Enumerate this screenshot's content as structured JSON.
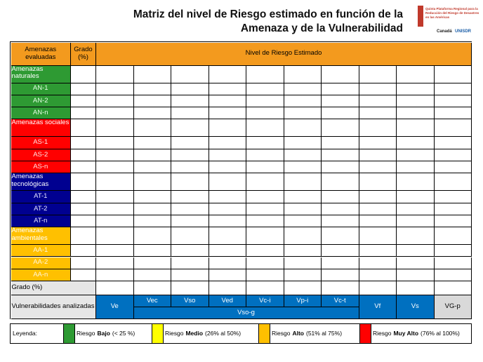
{
  "header": {
    "title_line1": "Matriz del nivel de Riesgo estimado en función de la",
    "title_line2": "Amenaza y de la Vulnerabilidad",
    "logo": {
      "line1": "Quinta Plataforma Regional para la",
      "line2": "Reducción del Riesgo de Desastres",
      "line3": "en las Américas",
      "canada": "Canadá",
      "unisdr": "UNISDR"
    }
  },
  "table": {
    "col_threat": "Amenazas evaluadas",
    "col_grade": "Grado (%)",
    "col_risk": "Nivel de Riesgo Estimado",
    "header_color": "#f39a1e",
    "groups": [
      {
        "name": "Amenazas naturales",
        "color": "#2e9a33",
        "item_text_color": "#e6ffe6",
        "items": [
          "AN-1",
          "AN-2",
          "AN-n"
        ]
      },
      {
        "name": "Amenazas sociales",
        "color": "#ff0000",
        "item_text_color": "#ffe6e6",
        "items": [
          "AS-1",
          "AS-2",
          "AS-n"
        ]
      },
      {
        "name": "Amenazas tecnológicas",
        "color": "#000090",
        "item_text_color": "#e6e6ff",
        "items": [
          "AT-1",
          "AT-2",
          "AT-n"
        ]
      },
      {
        "name": "Amenazas ambientales",
        "color": "#ffc000",
        "item_text_color": "#fff6dd",
        "items": [
          "AA-1",
          "AA-2",
          "AA-n"
        ]
      }
    ],
    "grade_row": "Grado (%)",
    "vulnerability_row": {
      "label": "Vulnerabilidades analizadas",
      "ve": "Ve",
      "sub": [
        "Vec",
        "Vso",
        "Ved",
        "Vc-i",
        "Vp-i",
        "Vc-t"
      ],
      "group": "Vso-g",
      "vf": "Vf",
      "vs": "Vs",
      "total": "VG-p",
      "blue": "#0070c0",
      "gray": "#d9d9d9"
    }
  },
  "legend": {
    "label": "Leyenda:",
    "items": [
      {
        "color": "#2e9a33",
        "prefix": "Riesgo",
        "level": "Bajo",
        "range": "(< 25 %)"
      },
      {
        "color": "#ffff00",
        "prefix": "Riesgo",
        "level": "Medio",
        "range": "(26% al 50%)"
      },
      {
        "color": "#ffc000",
        "prefix": "Riesgo",
        "level": "Alto",
        "range": "(51% al 75%)"
      },
      {
        "color": "#ff0000",
        "prefix": "Riesgo",
        "level": "Muy Alto",
        "range": "(76% al 100%)"
      }
    ]
  }
}
